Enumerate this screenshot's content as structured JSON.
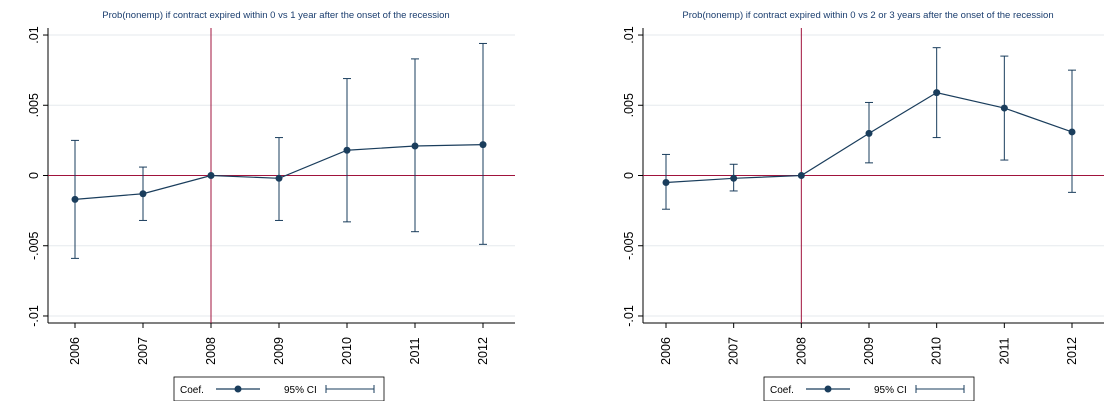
{
  "colors": {
    "series": "#1a3d5c",
    "reference": "#a0133c",
    "grid": "#e6eaee",
    "axis": "#000000"
  },
  "legend": {
    "coef_label": "Coef.",
    "ci_label": "95% CI",
    "placement": "bottom"
  },
  "chart_data": [
    {
      "type": "line",
      "title": "Prob(nonemp) if contract expired within 0 vs 1 year after the onset of the recession",
      "xlabel": "",
      "ylabel": "",
      "categories": [
        "2006",
        "2007",
        "2008",
        "2009",
        "2010",
        "2011",
        "2012"
      ],
      "y_ticks": [
        ".01",
        ".005",
        "0",
        "-.005",
        "-.01"
      ],
      "y_tick_values": [
        0.01,
        0.005,
        0,
        -0.005,
        -0.01
      ],
      "ylim": [
        -0.0105,
        0.0105
      ],
      "grid": true,
      "reference_lines": {
        "x": "2008",
        "y": 0
      },
      "series": [
        {
          "name": "Coef.",
          "values": [
            -0.0017,
            -0.0013,
            0.0,
            -0.0002,
            0.0018,
            0.0021,
            0.0022
          ]
        },
        {
          "name": "95% CI",
          "lower": [
            -0.0059,
            -0.0032,
            0.0,
            -0.0032,
            -0.0033,
            -0.004,
            -0.0049
          ],
          "upper": [
            0.0025,
            0.0006,
            0.0,
            0.0027,
            0.0069,
            0.0083,
            0.0094
          ]
        }
      ]
    },
    {
      "type": "line",
      "title": "Prob(nonemp) if contract expired within 0 vs 2 or 3 years after the onset of the recession",
      "xlabel": "",
      "ylabel": "",
      "categories": [
        "2006",
        "2007",
        "2008",
        "2009",
        "2010",
        "2011",
        "2012"
      ],
      "y_ticks": [
        ".01",
        ".005",
        "0",
        "-.005",
        "-.01"
      ],
      "y_tick_values": [
        0.01,
        0.005,
        0,
        -0.005,
        -0.01
      ],
      "ylim": [
        -0.0105,
        0.0105
      ],
      "grid": true,
      "reference_lines": {
        "x": "2008",
        "y": 0
      },
      "series": [
        {
          "name": "Coef.",
          "values": [
            -0.0005,
            -0.0002,
            0.0,
            0.003,
            0.0059,
            0.0048,
            0.0031
          ]
        },
        {
          "name": "95% CI",
          "lower": [
            -0.0024,
            -0.0011,
            0.0,
            0.0009,
            0.0027,
            0.0011,
            -0.0012
          ],
          "upper": [
            0.0015,
            0.0008,
            0.0,
            0.0052,
            0.0091,
            0.0085,
            0.0075
          ]
        }
      ]
    }
  ]
}
